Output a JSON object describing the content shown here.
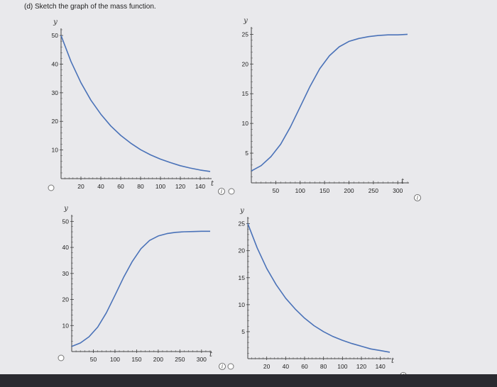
{
  "question": {
    "text": "(d) Sketch the graph of the mass function."
  },
  "chart_data": [
    {
      "type": "line",
      "panel": "top-left",
      "xlabel": "t",
      "ylabel": "y",
      "xlim": [
        0,
        150
      ],
      "ylim": [
        0,
        52
      ],
      "x_ticks": [
        20,
        40,
        60,
        80,
        100,
        120,
        140
      ],
      "y_ticks": [
        10,
        20,
        30,
        40,
        50
      ],
      "series": [
        {
          "x": [
            0,
            10,
            20,
            30,
            40,
            50,
            60,
            70,
            80,
            90,
            100,
            110,
            120,
            130,
            140,
            150
          ],
          "values": [
            50,
            40.9,
            33.5,
            27.4,
            22.5,
            18.4,
            15.1,
            12.4,
            10.1,
            8.3,
            6.8,
            5.6,
            4.5,
            3.7,
            3.0,
            2.5
          ]
        }
      ]
    },
    {
      "type": "line",
      "panel": "top-right",
      "xlabel": "t",
      "ylabel": "y",
      "xlim": [
        0,
        320
      ],
      "ylim": [
        0,
        26
      ],
      "x_ticks": [
        50,
        100,
        150,
        200,
        250,
        300
      ],
      "y_ticks": [
        5,
        10,
        15,
        20,
        25
      ],
      "series": [
        {
          "x": [
            0,
            20,
            40,
            60,
            80,
            100,
            120,
            140,
            160,
            180,
            200,
            220,
            240,
            260,
            280,
            300,
            320
          ],
          "values": [
            2.0,
            2.9,
            4.4,
            6.5,
            9.4,
            12.8,
            16.2,
            19.2,
            21.4,
            22.9,
            23.8,
            24.3,
            24.6,
            24.8,
            24.9,
            24.9,
            25.0
          ]
        }
      ]
    },
    {
      "type": "line",
      "panel": "bottom-left",
      "xlabel": "t",
      "ylabel": "y",
      "xlim": [
        0,
        320
      ],
      "ylim": [
        0,
        52
      ],
      "x_ticks": [
        50,
        100,
        150,
        200,
        250,
        300
      ],
      "y_ticks": [
        10,
        20,
        30,
        40,
        50
      ],
      "series": [
        {
          "x": [
            0,
            20,
            40,
            60,
            80,
            100,
            120,
            140,
            160,
            180,
            200,
            220,
            240,
            260,
            280,
            300,
            320
          ],
          "values": [
            2.0,
            3.3,
            5.7,
            9.4,
            14.9,
            21.6,
            28.5,
            34.6,
            39.5,
            42.7,
            44.4,
            45.3,
            45.8,
            46.0,
            46.1,
            46.2,
            46.2
          ]
        }
      ]
    },
    {
      "type": "line",
      "panel": "bottom-right",
      "xlabel": "t",
      "ylabel": "y",
      "xlim": [
        0,
        150
      ],
      "ylim": [
        0,
        26
      ],
      "x_ticks": [
        20,
        40,
        60,
        80,
        100,
        120,
        140
      ],
      "y_ticks": [
        5,
        10,
        15,
        20,
        25
      ],
      "series": [
        {
          "x": [
            0,
            10,
            20,
            30,
            40,
            50,
            60,
            70,
            80,
            90,
            100,
            110,
            120,
            130,
            140,
            150
          ],
          "values": [
            25,
            20.5,
            16.7,
            13.7,
            11.2,
            9.2,
            7.5,
            6.1,
            5.0,
            4.1,
            3.4,
            2.8,
            2.3,
            1.8,
            1.5,
            1.2
          ]
        }
      ]
    }
  ],
  "controls": {
    "info_symbol": "i"
  }
}
